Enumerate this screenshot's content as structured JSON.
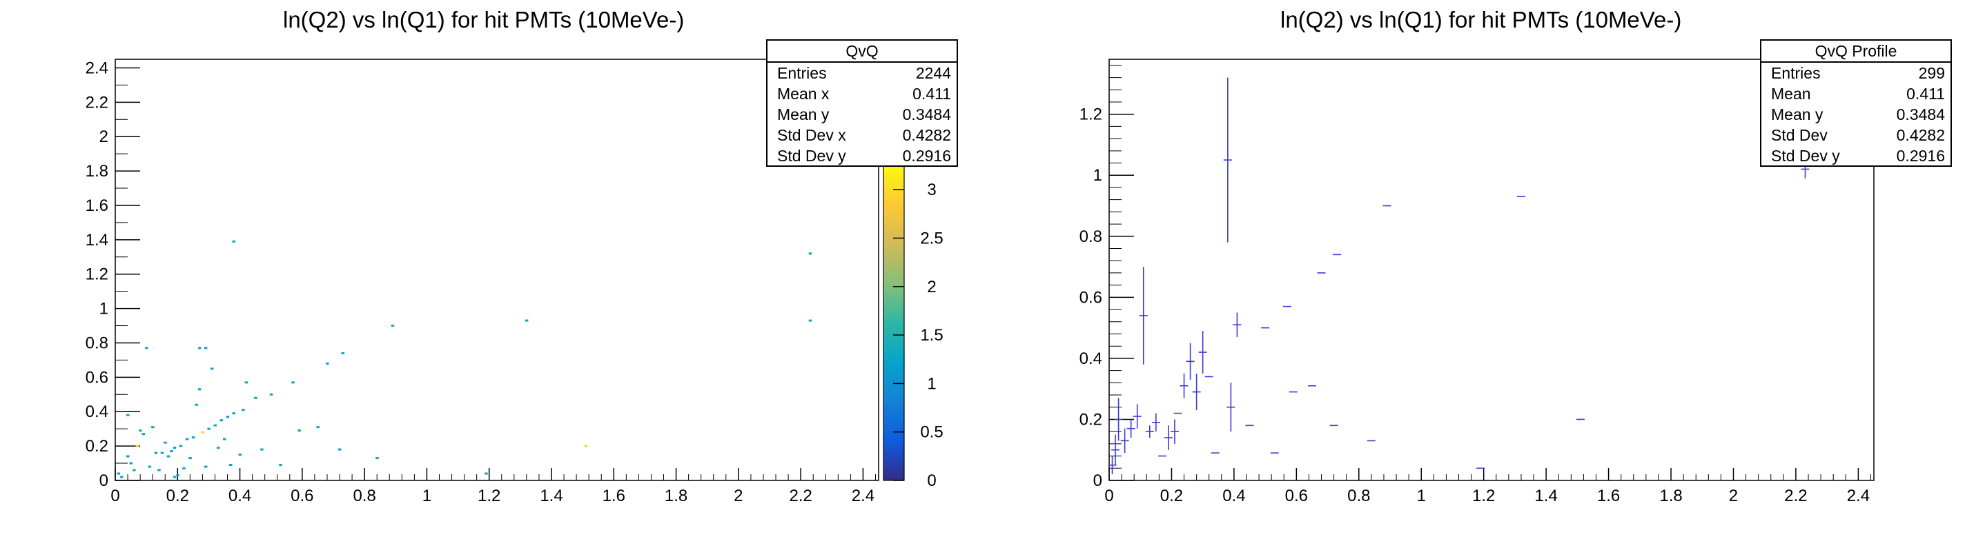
{
  "colors": {
    "axis": "#000000",
    "profile_marker": "#3a3ad6",
    "background": "#ffffff"
  },
  "palette": [
    "#352a87",
    "#0f5cdd",
    "#1481d6",
    "#06a4ca",
    "#2eb7a4",
    "#87bf77",
    "#d1bb59",
    "#fec832",
    "#f9fb0e"
  ],
  "left_panel": {
    "title": "ln(Q2) vs ln(Q1) for hit PMTs (10MeVe-)",
    "stats": {
      "name": "QvQ",
      "rows": [
        {
          "label": "Entries",
          "value": "2244"
        },
        {
          "label": "Mean x",
          "value": "0.411"
        },
        {
          "label": "Mean y",
          "value": "0.3484"
        },
        {
          "label": "Std Dev x",
          "value": "0.4282"
        },
        {
          "label": "Std Dev y",
          "value": "0.2916"
        }
      ]
    }
  },
  "right_panel": {
    "title": "ln(Q2) vs ln(Q1) for hit PMTs (10MeVe-)",
    "stats": {
      "name": "QvQ Profile",
      "rows": [
        {
          "label": "Entries",
          "value": "299"
        },
        {
          "label": "Mean",
          "value": "0.411"
        },
        {
          "label": "Mean y",
          "value": "0.3484"
        },
        {
          "label": "Std Dev",
          "value": "0.4282"
        },
        {
          "label": "Std Dev y",
          "value": "0.2916"
        }
      ]
    }
  },
  "chart_data": [
    {
      "type": "heatmap",
      "title": "ln(Q2) vs ln(Q1) for hit PMTs (10MeVe-)",
      "xlim": [
        0,
        2.45
      ],
      "ylim": [
        0,
        2.45
      ],
      "xticks": [
        "0",
        "0.2",
        "0.4",
        "0.6",
        "0.8",
        "1",
        "1.2",
        "1.4",
        "1.6",
        "1.8",
        "2",
        "2.2",
        "2.4"
      ],
      "yticks": [
        "0",
        "0.2",
        "0.4",
        "0.6",
        "0.8",
        "1",
        "1.2",
        "1.4",
        "1.6",
        "1.8",
        "2",
        "2.2",
        "2.4"
      ],
      "zlim": [
        0,
        3
      ],
      "zticks": [
        "0",
        "0.5",
        "1",
        "1.5",
        "2",
        "2.5",
        "3"
      ],
      "cells": [
        [
          0.01,
          0.04,
          1
        ],
        [
          0.02,
          0.02,
          1
        ],
        [
          0.04,
          0.38,
          1
        ],
        [
          0.04,
          0.14,
          1
        ],
        [
          0.05,
          0.1,
          1
        ],
        [
          0.06,
          0.06,
          1
        ],
        [
          0.07,
          0.2,
          3
        ],
        [
          0.08,
          0.29,
          1
        ],
        [
          0.09,
          0.27,
          1
        ],
        [
          0.1,
          0.77,
          1
        ],
        [
          0.11,
          0.08,
          1
        ],
        [
          0.12,
          0.31,
          1
        ],
        [
          0.13,
          0.16,
          1
        ],
        [
          0.14,
          0.06,
          1
        ],
        [
          0.15,
          0.16,
          1
        ],
        [
          0.16,
          0.22,
          1
        ],
        [
          0.17,
          0.14,
          1
        ],
        [
          0.18,
          0.17,
          1
        ],
        [
          0.19,
          0.02,
          1
        ],
        [
          0.19,
          0.19,
          1
        ],
        [
          0.2,
          0.03,
          1
        ],
        [
          0.21,
          0.2,
          1
        ],
        [
          0.22,
          0.07,
          1
        ],
        [
          0.23,
          0.24,
          1
        ],
        [
          0.24,
          0.13,
          1
        ],
        [
          0.25,
          0.25,
          1
        ],
        [
          0.26,
          0.44,
          1
        ],
        [
          0.27,
          0.77,
          1
        ],
        [
          0.27,
          0.53,
          1
        ],
        [
          0.28,
          0.28,
          3
        ],
        [
          0.29,
          0.77,
          1
        ],
        [
          0.29,
          0.08,
          1
        ],
        [
          0.3,
          0.3,
          1
        ],
        [
          0.31,
          0.65,
          1
        ],
        [
          0.32,
          0.32,
          1
        ],
        [
          0.33,
          0.19,
          1
        ],
        [
          0.34,
          0.35,
          1
        ],
        [
          0.35,
          0.24,
          1
        ],
        [
          0.36,
          0.37,
          1
        ],
        [
          0.37,
          0.09,
          1
        ],
        [
          0.38,
          1.39,
          1
        ],
        [
          0.38,
          0.39,
          1
        ],
        [
          0.4,
          0.15,
          1
        ],
        [
          0.41,
          0.41,
          1
        ],
        [
          0.42,
          0.57,
          1
        ],
        [
          0.45,
          0.48,
          1
        ],
        [
          0.47,
          0.18,
          1
        ],
        [
          0.5,
          0.5,
          1
        ],
        [
          0.53,
          0.09,
          1
        ],
        [
          0.57,
          0.57,
          1
        ],
        [
          0.59,
          0.29,
          1
        ],
        [
          0.65,
          0.31,
          1
        ],
        [
          0.68,
          0.68,
          1
        ],
        [
          0.72,
          0.18,
          1
        ],
        [
          0.73,
          0.74,
          1
        ],
        [
          0.84,
          0.13,
          1
        ],
        [
          0.89,
          0.9,
          1
        ],
        [
          1.19,
          0.04,
          1
        ],
        [
          1.32,
          0.93,
          1
        ],
        [
          1.51,
          0.2,
          3
        ],
        [
          2.23,
          1.32,
          1
        ],
        [
          2.23,
          0.93,
          1
        ]
      ]
    },
    {
      "type": "scatter",
      "title": "ln(Q2) vs ln(Q1) for hit PMTs (10MeVe-)",
      "xlim": [
        0,
        2.45
      ],
      "ylim": [
        0,
        1.38
      ],
      "xticks": [
        "0",
        "0.2",
        "0.4",
        "0.6",
        "0.8",
        "1",
        "1.2",
        "1.4",
        "1.6",
        "1.8",
        "2",
        "2.2",
        "2.4"
      ],
      "yticks": [
        "0",
        "0.2",
        "0.4",
        "0.6",
        "0.8",
        "1",
        "1.2"
      ],
      "points": [
        [
          0.01,
          0.05,
          0.03
        ],
        [
          0.02,
          0.1,
          0.05
        ],
        [
          0.03,
          0.2,
          0.07
        ],
        [
          0.05,
          0.13,
          0.04
        ],
        [
          0.07,
          0.17,
          0.03
        ],
        [
          0.09,
          0.21,
          0.04
        ],
        [
          0.11,
          0.54,
          0.16
        ],
        [
          0.13,
          0.16,
          0.02
        ],
        [
          0.15,
          0.19,
          0.03
        ],
        [
          0.17,
          0.08,
          0
        ],
        [
          0.19,
          0.14,
          0.04
        ],
        [
          0.21,
          0.16,
          0.04
        ],
        [
          0.22,
          0.22,
          0
        ],
        [
          0.24,
          0.31,
          0.04
        ],
        [
          0.26,
          0.39,
          0.06
        ],
        [
          0.28,
          0.29,
          0.06
        ],
        [
          0.3,
          0.42,
          0.07
        ],
        [
          0.32,
          0.34,
          0
        ],
        [
          0.34,
          0.09,
          0
        ],
        [
          0.38,
          1.05,
          0.27
        ],
        [
          0.39,
          0.24,
          0.08
        ],
        [
          0.41,
          0.51,
          0.04
        ],
        [
          0.45,
          0.18,
          0
        ],
        [
          0.5,
          0.5,
          0
        ],
        [
          0.53,
          0.09,
          0
        ],
        [
          0.57,
          0.57,
          0
        ],
        [
          0.59,
          0.29,
          0
        ],
        [
          0.65,
          0.31,
          0
        ],
        [
          0.68,
          0.68,
          0
        ],
        [
          0.72,
          0.18,
          0
        ],
        [
          0.73,
          0.74,
          0
        ],
        [
          0.84,
          0.13,
          0
        ],
        [
          0.89,
          0.9,
          0
        ],
        [
          1.19,
          0.04,
          0
        ],
        [
          1.32,
          0.93,
          0
        ],
        [
          1.51,
          0.2,
          0
        ],
        [
          2.23,
          1.02,
          0.03
        ]
      ]
    }
  ]
}
